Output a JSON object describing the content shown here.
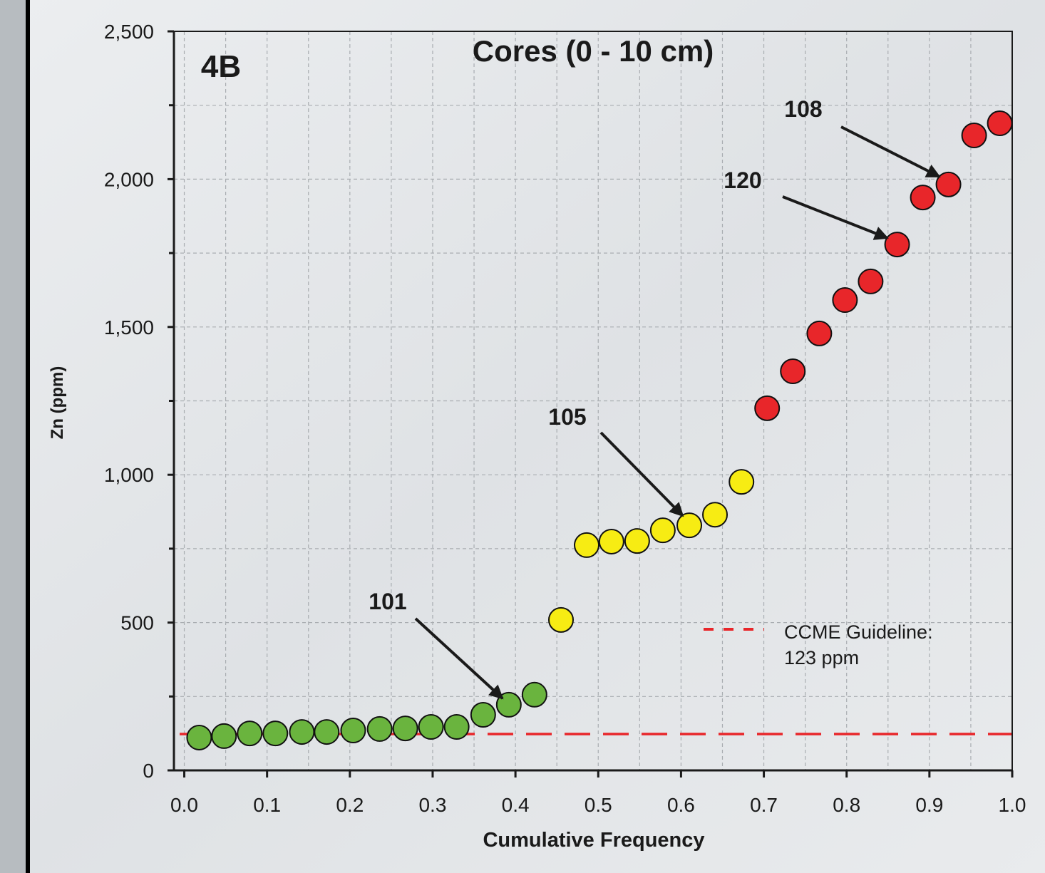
{
  "chart_data": {
    "type": "scatter",
    "title": "Cores (0 - 10 cm)",
    "panel_label": "4B",
    "x_label": "Cumulative Frequency",
    "y_label": "Zn (ppm)",
    "xlim": [
      -0.0125,
      1.0
    ],
    "ylim": [
      0,
      2500
    ],
    "xticks": [
      {
        "value": 0,
        "label": "0.0"
      },
      0.1,
      0.2,
      0.3,
      0.4,
      0.5,
      0.6,
      0.7,
      0.8,
      0.9,
      {
        "value": 1,
        "label": "1.0"
      }
    ],
    "yticks": [
      0,
      500,
      {
        "value": 1000,
        "label": "1,000"
      },
      {
        "value": 1500,
        "label": "1,500"
      },
      {
        "value": 2000,
        "label": "2,000"
      },
      {
        "value": 2500,
        "label": "2,500"
      }
    ],
    "xminorticks": [
      0.05,
      0.15,
      0.25,
      0.35,
      0.45,
      0.55,
      0.65,
      0.75,
      0.85,
      0.95
    ],
    "yminorticks": [
      250,
      750,
      1250,
      1750,
      2250
    ],
    "grid": true,
    "series": [
      {
        "color": "#6ab43e",
        "x": [
          0.018,
          0.048,
          0.079,
          0.11,
          0.142,
          0.172,
          0.204,
          0.236,
          0.267,
          0.298,
          0.329,
          0.361,
          0.392,
          0.423
        ],
        "values": [
          111,
          116,
          125,
          125,
          130,
          130,
          135,
          140,
          142,
          147,
          147,
          188,
          222,
          256
        ]
      },
      {
        "color": "#f7ec13",
        "x": [
          0.455,
          0.486,
          0.516,
          0.547,
          0.578,
          0.61,
          0.641,
          0.673
        ],
        "values": [
          509,
          762,
          774,
          776,
          812,
          829,
          865,
          976
        ]
      },
      {
        "color": "#e8262a",
        "x": [
          0.704,
          0.735,
          0.767,
          0.798,
          0.829,
          0.861,
          0.892,
          0.923,
          0.954,
          0.985
        ],
        "values": [
          1225,
          1350,
          1478,
          1591,
          1654,
          1779,
          1938,
          1982,
          2148,
          2189
        ]
      }
    ],
    "guideline": {
      "value": 123,
      "label": [
        "CCME Guideline:",
        "123 ppm"
      ],
      "color": "#e8262a"
    },
    "annotations": [
      "101",
      "105",
      "120",
      "108"
    ]
  }
}
